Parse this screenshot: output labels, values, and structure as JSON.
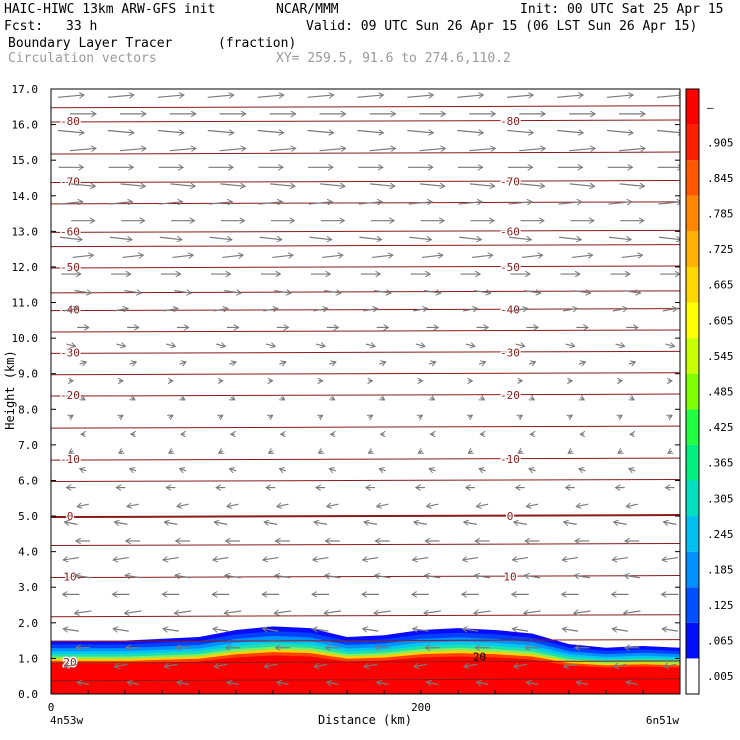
{
  "header": {
    "model": "HAIC-HIWC 13km ARW-GFS init",
    "org": "NCAR/MMM",
    "init": "Init: 00 UTC Sat 25 Apr 15",
    "fcst_label": "Fcst:",
    "fcst_value": "33 h",
    "valid": "Valid: 09 UTC Sun 26 Apr 15 (06 LST Sun 26 Apr 15)",
    "field": "Boundary Layer Tracer",
    "units": "(fraction)",
    "overlay": "Circulation vectors",
    "xy": "XY= 259.5, 91.6 to 274.6,110.2"
  },
  "colors": {
    "isotherm": "#8b1a1a",
    "vector": "#7a7a7a",
    "overlay_text": "#9a9a9a"
  },
  "chart_data": {
    "type": "heatmap",
    "title": "Boundary Layer Tracer",
    "ylabel": "Height (km)",
    "xlabel": "Distance (km)",
    "x_start_label": "4n53w",
    "x_end_label": "6n51w",
    "xlim": [
      0,
      340
    ],
    "ylim": [
      0,
      17
    ],
    "x_ticks": [
      0,
      200
    ],
    "y_ticks": [
      "0.0",
      "1.0",
      "2.0",
      "3.0",
      "4.0",
      "5.0",
      "6.0",
      "7.0",
      "8.0",
      "9.0",
      "10.0",
      "11.0",
      "12.0",
      "13.0",
      "14.0",
      "15.0",
      "16.0",
      "17.0"
    ],
    "colorbar": {
      "labels": [
        ".005",
        ".065",
        ".125",
        ".185",
        ".245",
        ".305",
        ".365",
        ".425",
        ".485",
        ".545",
        ".605",
        ".665",
        ".725",
        ".785",
        ".845",
        ".905",
        "–"
      ],
      "colors": [
        "#ffffff",
        "#0010ff",
        "#0050ff",
        "#0090ff",
        "#00c0f0",
        "#00e0c0",
        "#00f080",
        "#20ff40",
        "#80ff00",
        "#c8ff00",
        "#ffff00",
        "#ffd800",
        "#ffb000",
        "#ff8800",
        "#ff5800",
        "#ff2000",
        "#ff0000"
      ]
    },
    "boundary_layer_top": {
      "x": [
        0,
        40,
        80,
        100,
        120,
        140,
        160,
        180,
        200,
        220,
        240,
        260,
        280,
        300,
        320,
        340
      ],
      "km": [
        1.5,
        1.5,
        1.6,
        1.8,
        1.9,
        1.85,
        1.6,
        1.65,
        1.8,
        1.85,
        1.8,
        1.7,
        1.4,
        1.3,
        1.35,
        1.3
      ]
    },
    "isotherms": [
      {
        "temp_c": -80,
        "label": "-80",
        "height_km": 16.1
      },
      {
        "temp_c": -70,
        "label": "-70",
        "height_km": 14.4
      },
      {
        "temp_c": -60,
        "label": "-60",
        "height_km": 13.0
      },
      {
        "temp_c": -50,
        "label": "-50",
        "height_km": 12.0
      },
      {
        "temp_c": -40,
        "label": "-40",
        "height_km": 10.8
      },
      {
        "temp_c": -30,
        "label": "-30",
        "height_km": 9.6
      },
      {
        "temp_c": -20,
        "label": "-20",
        "height_km": 8.4
      },
      {
        "temp_c": -10,
        "label": "-10",
        "height_km": 6.6
      },
      {
        "temp_c": 0,
        "label": "0",
        "height_km": 5.0
      },
      {
        "temp_c": 10,
        "label": "10",
        "height_km": 3.3
      },
      {
        "temp_c": 20,
        "label": "20",
        "height_km": 0.9
      }
    ],
    "extra_isotherm_heights_km": [
      16.5,
      15.2,
      13.8,
      12.6,
      11.3,
      10.2,
      9.0,
      7.5,
      6.0,
      4.2,
      2.2,
      1.5,
      0.4
    ],
    "extra_labels": [
      {
        "label": "20",
        "x": 210,
        "height_km": 1.05
      }
    ],
    "wind_vector_rows": [
      {
        "height_km": 16.8,
        "u": 1.0
      },
      {
        "height_km": 16.3,
        "u": 1.0
      },
      {
        "height_km": 15.8,
        "u": 1.0
      },
      {
        "height_km": 15.3,
        "u": 1.0
      },
      {
        "height_km": 14.8,
        "u": 0.95
      },
      {
        "height_km": 14.3,
        "u": 0.95
      },
      {
        "height_km": 13.8,
        "u": 0.9
      },
      {
        "height_km": 13.3,
        "u": 0.9
      },
      {
        "height_km": 12.8,
        "u": 0.85
      },
      {
        "height_km": 12.3,
        "u": 0.8
      },
      {
        "height_km": 11.8,
        "u": 0.75
      },
      {
        "height_km": 11.3,
        "u": 0.65
      },
      {
        "height_km": 10.8,
        "u": 0.55
      },
      {
        "height_km": 10.3,
        "u": 0.45
      },
      {
        "height_km": 9.8,
        "u": 0.35
      },
      {
        "height_km": 9.3,
        "u": 0.25
      },
      {
        "height_km": 8.8,
        "u": 0.15
      },
      {
        "height_km": 8.3,
        "u": 0.05
      },
      {
        "height_km": 7.8,
        "u": 0.0
      },
      {
        "height_km": 7.3,
        "u": -0.05
      },
      {
        "height_km": 6.8,
        "u": -0.15
      },
      {
        "height_km": 6.3,
        "u": -0.25
      },
      {
        "height_km": 5.8,
        "u": -0.35
      },
      {
        "height_km": 5.3,
        "u": -0.45
      },
      {
        "height_km": 4.8,
        "u": -0.5
      },
      {
        "height_km": 4.3,
        "u": -0.55
      },
      {
        "height_km": 3.8,
        "u": -0.6
      },
      {
        "height_km": 3.3,
        "u": -0.6
      },
      {
        "height_km": 2.8,
        "u": -0.65
      },
      {
        "height_km": 2.3,
        "u": -0.65
      },
      {
        "height_km": 1.8,
        "u": -0.6
      },
      {
        "height_km": 1.3,
        "u": -0.55
      },
      {
        "height_km": 0.8,
        "u": -0.5
      },
      {
        "height_km": 0.3,
        "u": -0.45
      }
    ],
    "wind_vector_columns": 13
  }
}
